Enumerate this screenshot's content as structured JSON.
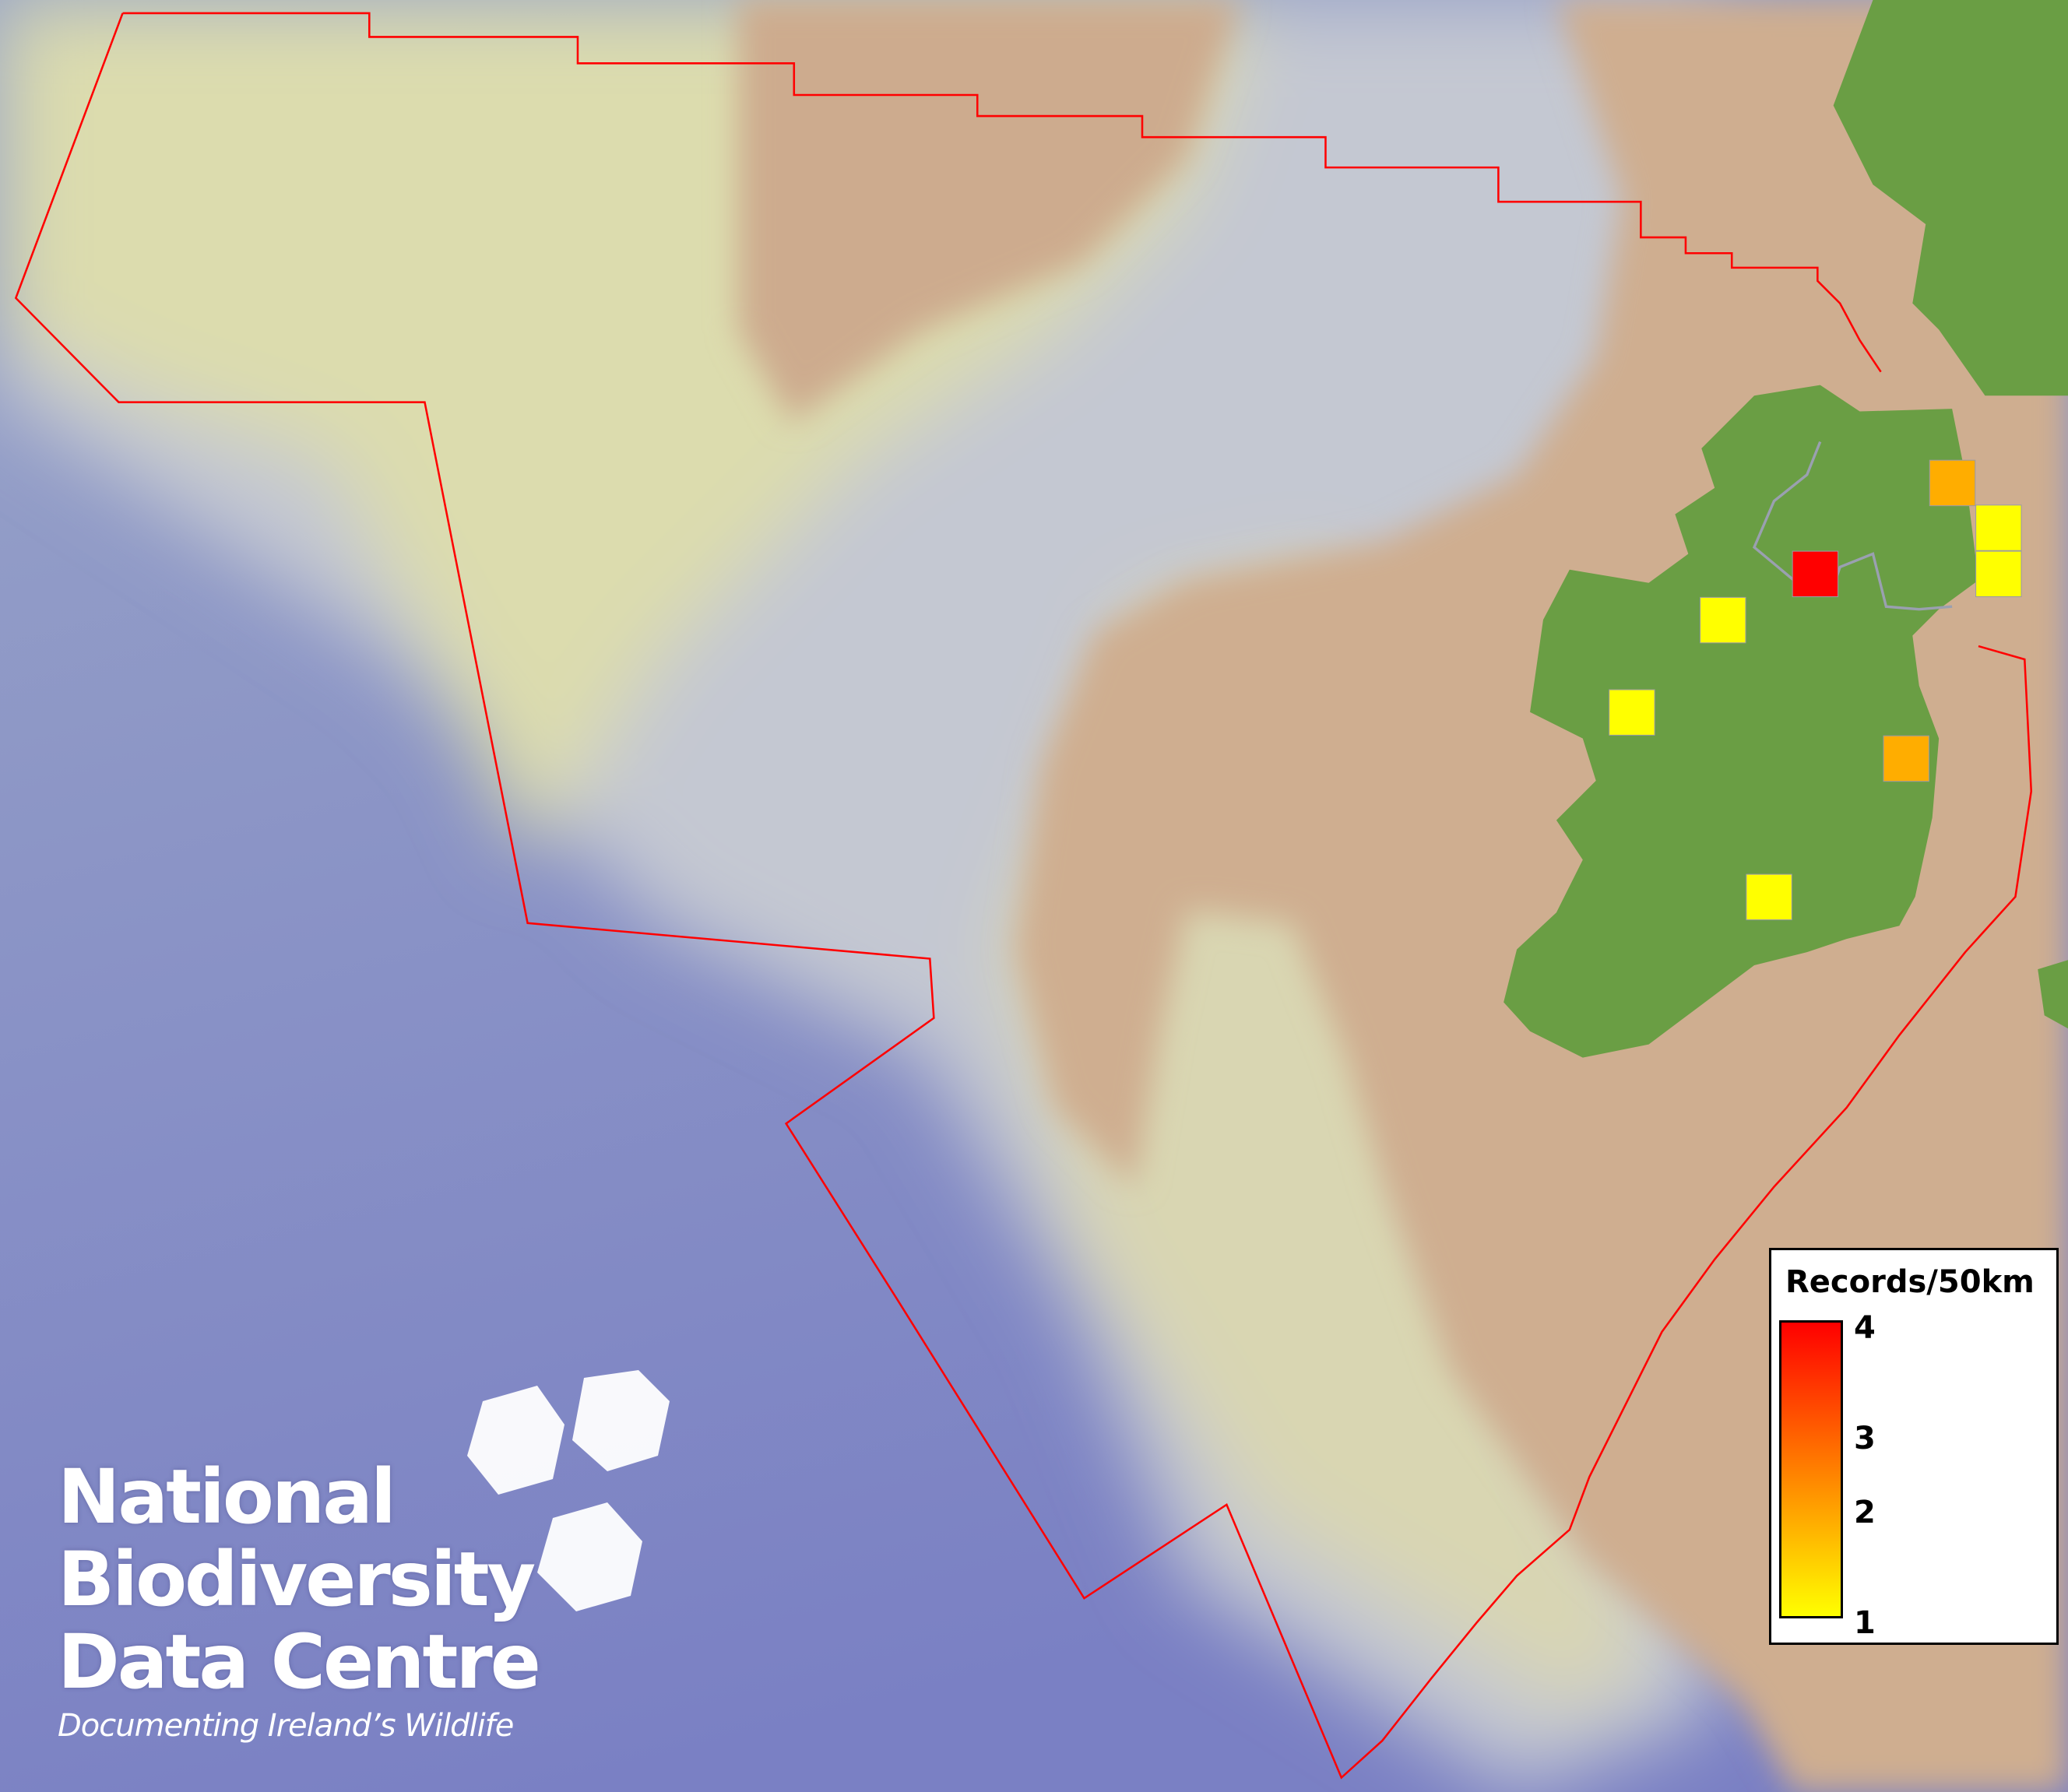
{
  "legend": {
    "title": "Records/50km",
    "ticks": [
      "4",
      "3",
      "2",
      "1"
    ],
    "color_min": "#ffff00",
    "color_mid": "#ffaa00",
    "color_max": "#ff0000",
    "range": [
      1,
      4
    ]
  },
  "grid_squares": [
    {
      "value": 2,
      "color": "#ffad00"
    },
    {
      "value": 1,
      "color": "#ffff00"
    },
    {
      "value": 1,
      "color": "#ffff00"
    },
    {
      "value": 4,
      "color": "#ff0000"
    },
    {
      "value": 1,
      "color": "#ffff00"
    },
    {
      "value": 1,
      "color": "#ffff00"
    },
    {
      "value": 2,
      "color": "#ffad00"
    },
    {
      "value": 1,
      "color": "#ffff00"
    }
  ],
  "boundary_color": "#ff0000",
  "land_color": "#6a9e44",
  "logo": {
    "line1": "National",
    "line2": "Biodiversity",
    "line3": "Data Centre",
    "tagline": "Documenting Ireland’s Wildlife"
  }
}
